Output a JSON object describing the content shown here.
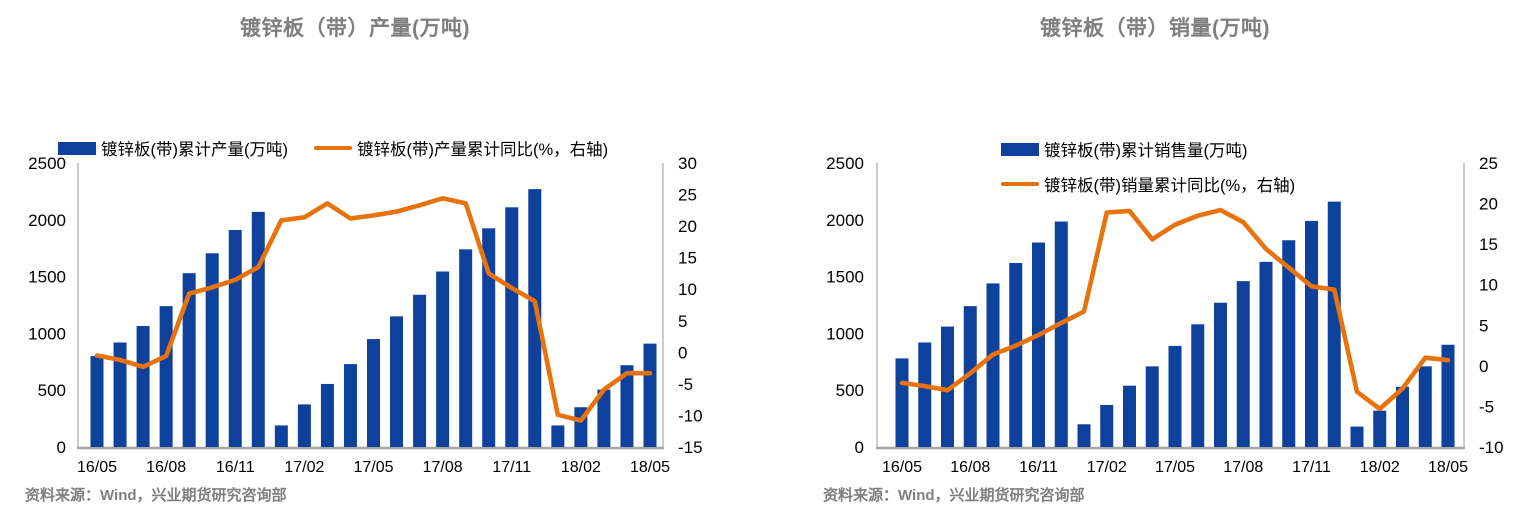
{
  "source_note": "资料来源：Wind，兴业期货研究咨询部",
  "colors": {
    "bar": "#0d419c",
    "line": "#e8720c",
    "title": "#7f7f7f",
    "source_text": "#7f7f7f",
    "axis_line": "#bfbfbf",
    "baseline": "#a6a6a6",
    "tick_text": "#000000"
  },
  "chart_data": [
    {
      "type": "bar",
      "combo": "bar+line, dual axis",
      "title": "镀锌板（带）产量(万吨)",
      "legend": [
        {
          "label": "镀锌板(带)累计产量(万吨)",
          "swatch": "bar"
        },
        {
          "label": "镀锌板(带)产量累计同比(%，右轴)",
          "swatch": "line"
        }
      ],
      "legend_position": "top, single row",
      "grid": false,
      "categories": [
        "16/05",
        "16/06",
        "16/07",
        "16/08",
        "16/09",
        "16/10",
        "16/11",
        "16/12",
        "17/01",
        "17/02",
        "17/03",
        "17/04",
        "17/05",
        "17/06",
        "17/07",
        "17/08",
        "17/09",
        "17/10",
        "17/11",
        "17/12",
        "18/01",
        "18/02",
        "18/03",
        "18/04",
        "18/05"
      ],
      "x_tick_labels": [
        "16/05",
        "16/08",
        "16/11",
        "17/02",
        "17/05",
        "17/08",
        "17/11",
        "18/02",
        "18/05"
      ],
      "left_axis": {
        "min": 0,
        "max": 2500,
        "ticks": [
          2500,
          2000,
          1500,
          1000,
          500,
          0
        ]
      },
      "right_axis": {
        "min": -15,
        "max": 30,
        "ticks": [
          30,
          25,
          20,
          15,
          10,
          5,
          0,
          -5,
          -10,
          -15
        ]
      },
      "series": [
        {
          "name": "镀锌板(带)累计产量(万吨)",
          "type": "bar",
          "axis": "left",
          "values": [
            800,
            920,
            1065,
            1240,
            1530,
            1705,
            1910,
            2070,
            190,
            375,
            555,
            730,
            950,
            1150,
            1340,
            1545,
            1740,
            1925,
            2110,
            2270,
            190,
            350,
            505,
            720,
            910
          ]
        },
        {
          "name": "镀锌板(带)产量累计同比(%，右轴)",
          "type": "line",
          "axis": "right",
          "values": [
            -0.5,
            -1.2,
            -2.3,
            -0.6,
            9.3,
            10.3,
            11.5,
            13.5,
            20.9,
            21.4,
            23.6,
            21.2,
            21.7,
            22.3,
            23.3,
            24.4,
            23.6,
            12.5,
            10.2,
            8.1,
            -9.9,
            -10.8,
            -5.9,
            -3.3,
            -3.3
          ]
        }
      ]
    },
    {
      "type": "bar",
      "combo": "bar+line, dual axis",
      "title": "镀锌板（带）销量(万吨)",
      "legend": [
        {
          "label": "镀锌板(带)累计销售量(万吨)",
          "swatch": "bar"
        },
        {
          "label": "镀锌板(带)销量累计同比(%，右轴)",
          "swatch": "line"
        }
      ],
      "legend_position": "top, two stacked rows",
      "grid": false,
      "categories": [
        "16/05",
        "16/06",
        "16/07",
        "16/08",
        "16/09",
        "16/10",
        "16/11",
        "16/12",
        "17/01",
        "17/02",
        "17/03",
        "17/04",
        "17/05",
        "17/06",
        "17/07",
        "17/08",
        "17/09",
        "17/10",
        "17/11",
        "17/12",
        "18/01",
        "18/02",
        "18/03",
        "18/04",
        "18/05"
      ],
      "x_tick_labels": [
        "16/05",
        "16/08",
        "16/11",
        "17/02",
        "17/05",
        "17/08",
        "17/11",
        "18/02",
        "18/05"
      ],
      "left_axis": {
        "min": 0,
        "max": 2500,
        "ticks": [
          2500,
          2000,
          1500,
          1000,
          500,
          0
        ]
      },
      "right_axis": {
        "min": -10,
        "max": 25,
        "ticks": [
          25,
          20,
          15,
          10,
          5,
          0,
          -5,
          -10
        ]
      },
      "series": [
        {
          "name": "镀锌板(带)累计销售量(万吨)",
          "type": "bar",
          "axis": "left",
          "values": [
            780,
            920,
            1060,
            1240,
            1440,
            1620,
            1800,
            1985,
            200,
            370,
            540,
            710,
            890,
            1080,
            1270,
            1460,
            1630,
            1820,
            1990,
            2160,
            180,
            320,
            530,
            710,
            900
          ]
        },
        {
          "name": "镀锌板(带)销量累计同比(%，右轴)",
          "type": "line",
          "axis": "right",
          "values": [
            -2.1,
            -2.5,
            -3.0,
            -0.9,
            1.4,
            2.5,
            3.8,
            5.3,
            6.7,
            18.9,
            19.1,
            15.6,
            17.4,
            18.5,
            19.2,
            17.7,
            14.4,
            12.1,
            9.8,
            9.4,
            -3.2,
            -5.3,
            -2.8,
            1.0,
            0.7
          ]
        }
      ]
    }
  ]
}
